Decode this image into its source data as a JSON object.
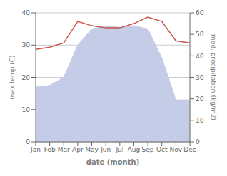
{
  "chart_data": {
    "type": "area",
    "categories": [
      "Jan",
      "Feb",
      "Mar",
      "Apr",
      "May",
      "Jun",
      "Jul",
      "Aug",
      "Sep",
      "Oct",
      "Nov",
      "Dec"
    ],
    "series": [
      {
        "type": "area",
        "color": "#c5cce8",
        "values": [
          17,
          17.5,
          20,
          30,
          35,
          36,
          35.5,
          36,
          35,
          26,
          13,
          13
        ]
      },
      {
        "type": "line",
        "color": "#c8534a",
        "axis": "y2",
        "values": [
          43,
          44,
          46,
          56,
          54,
          53,
          53,
          55,
          58,
          56,
          47,
          46
        ]
      }
    ],
    "xlabel": "date (month)",
    "ylabel": "max temp (C)",
    "y2label": "med. precipitation (kg/m2)",
    "ylim": [
      0,
      40
    ],
    "yticks": [
      0,
      10,
      20,
      30,
      40
    ],
    "y2lim": [
      0,
      60
    ],
    "y2ticks": [
      0,
      10,
      20,
      30,
      40,
      50,
      60
    ],
    "grid": true
  }
}
